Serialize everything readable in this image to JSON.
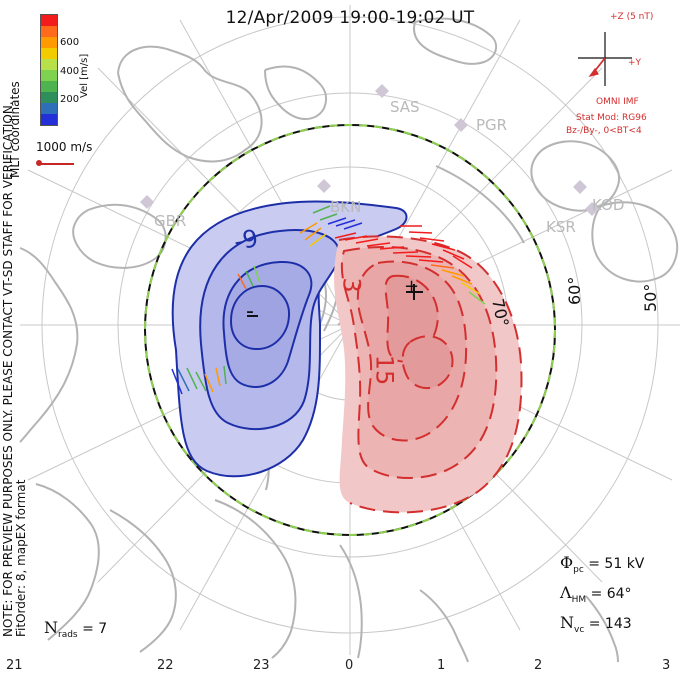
{
  "title": "12/Apr/2009 19:00-19:02 UT",
  "mlt_coordinates": "MLT coordinates",
  "note": {
    "line1": "NOTE: FOR PREVIEW PURPOSES ONLY. PLEASE CONTACT VT-SD STAFF FOR VERIFICATION.",
    "line2": "FitOrder: 8, mapEX format"
  },
  "legend": {
    "unit": "Vel [m/s]",
    "ticks": [
      "600",
      "400",
      "200"
    ],
    "colors": [
      "#f21c1c",
      "#ff6b1a",
      "#ff9b00",
      "#f3cc00",
      "#b8e04a",
      "#7fd24f",
      "#4fb34f",
      "#2e8f5c",
      "#2f6fba",
      "#2330d8"
    ]
  },
  "scale": {
    "label": "1000 m/s"
  },
  "imf": {
    "plus_z": "+Z (5 nT)",
    "plus_y": "+Y",
    "model": "OMNI IMF",
    "stat_mod": "Stat Mod: RG96",
    "bz_by": "Bz-/By-, 0<BT<4"
  },
  "stations": [
    {
      "code": "GBR",
      "label": "GBR"
    },
    {
      "code": "SAS",
      "label": "SAS"
    },
    {
      "code": "PGR",
      "label": "PGR"
    },
    {
      "code": "KSR",
      "label": "KSR"
    },
    {
      "code": "KOD",
      "label": "KOD"
    },
    {
      "code": "BKN",
      "label": "BKN"
    }
  ],
  "contours": {
    "minus": "-9",
    "minus_center": "-",
    "plus_3": "3",
    "plus_15": "15",
    "plus_center": "+"
  },
  "lat_labels": [
    "70°",
    "60°",
    "50°"
  ],
  "stats": {
    "phi_symbol": "Φ",
    "phi_sub": "pc",
    "phi_value": "= 51 kV",
    "lambda_symbol": "Λ",
    "lambda_sub": "HM",
    "lambda_value": "= 64°",
    "n_symbol": "N",
    "n_sub": "vc",
    "n_value": "= 143"
  },
  "nrads": {
    "symbol": "N",
    "sub": "rads",
    "value": "= 7"
  },
  "mlt_ticks": [
    "21",
    "22",
    "23",
    "0",
    "1",
    "2",
    "3"
  ],
  "colors": {
    "blue_fill": "#c9cbf0",
    "red_fill": "#f2c7c7",
    "blue_line": "#1d2fa8",
    "red_line": "#d32f2f",
    "land": "#b3b3b3",
    "grid": "#c8c8c8",
    "boundary_green": "#8fd14f"
  },
  "vectors": {
    "color_blue": "#2330d8",
    "color_green": "#4fb34f",
    "color_orange": "#ff9b00",
    "color_red": "#f21c1c"
  }
}
